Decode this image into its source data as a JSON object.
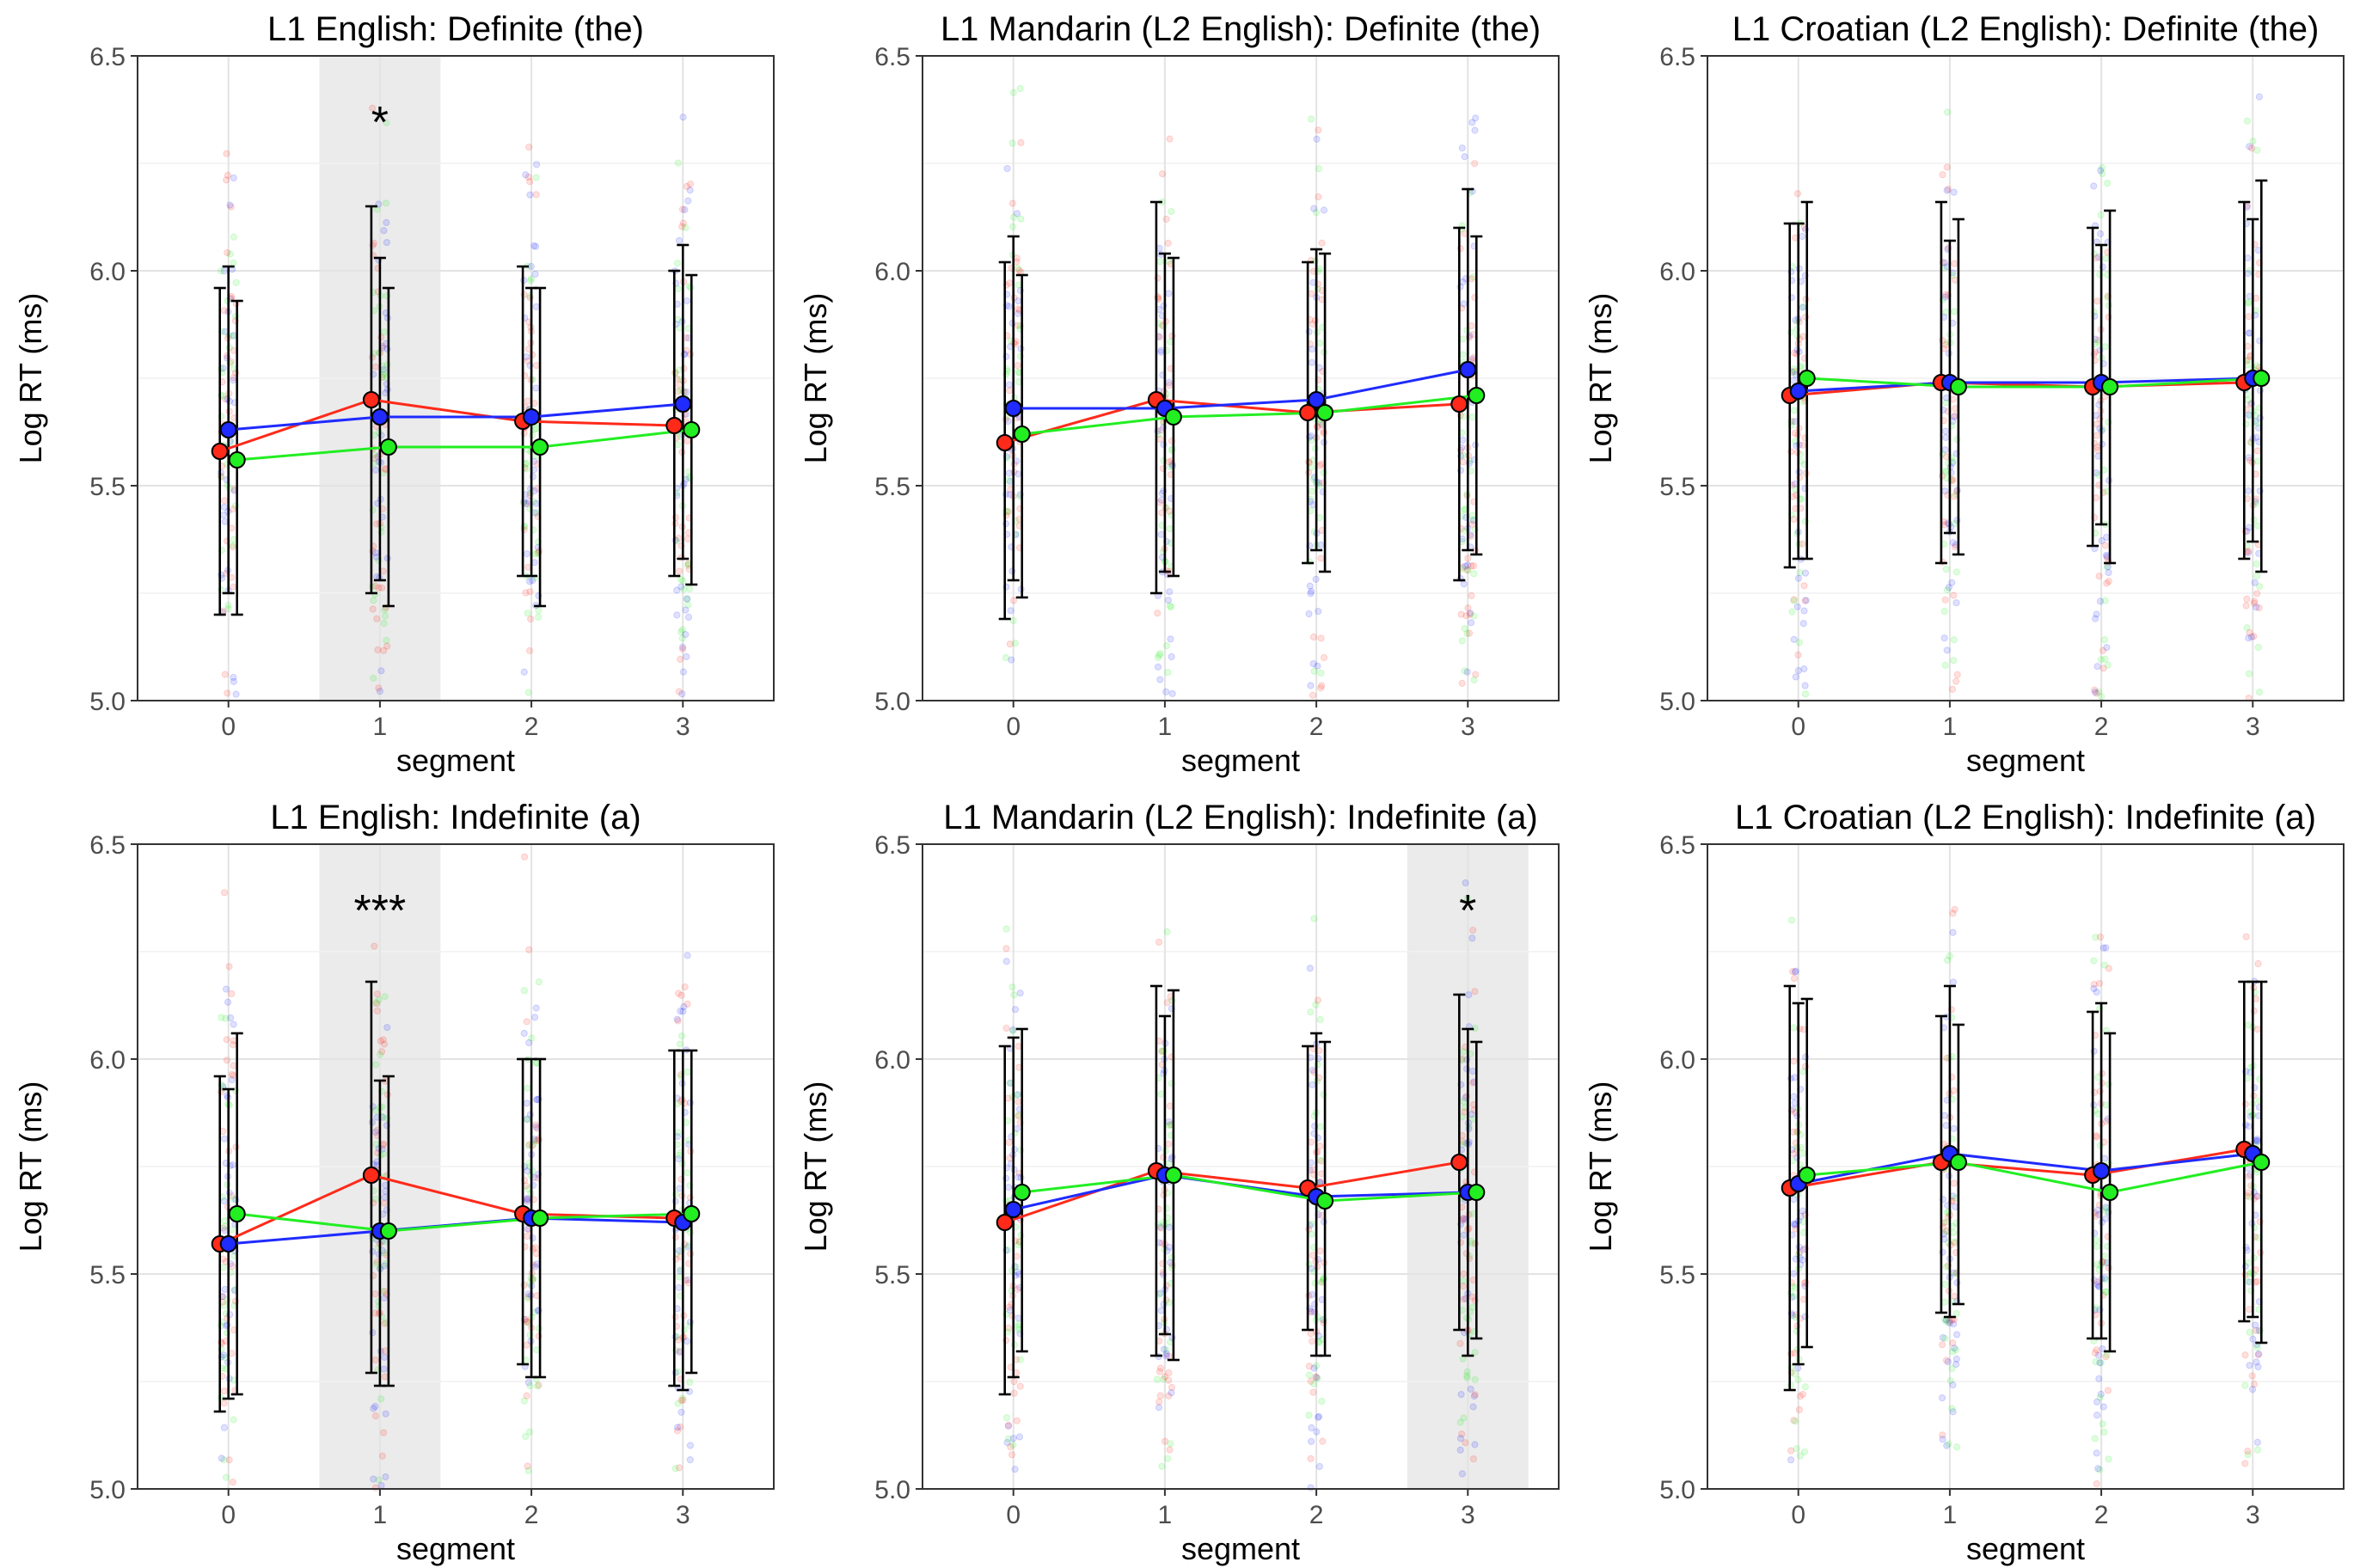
{
  "figure": {
    "series_colors": {
      "red": "#ff2a1a",
      "blue": "#1f2bff",
      "green": "#22ee22"
    },
    "error_bar_color": "#000000",
    "highlight_color": "#ebebeb"
  },
  "chart_data": [
    {
      "type": "line",
      "title": "L1 English: Definite (the)",
      "xlabel": "segment",
      "ylabel": "Log RT (ms)",
      "xticks": [
        "0",
        "1",
        "2",
        "3"
      ],
      "yticks": [
        "5.0",
        "5.5",
        "6.0",
        "6.5"
      ],
      "ylim": [
        5.0,
        6.5
      ],
      "grid": true,
      "highlight_segment": 1,
      "significance": "*",
      "series": [
        {
          "color": "#ff2a1a",
          "x": [
            0,
            1,
            2,
            3
          ],
          "y": [
            5.58,
            5.7,
            5.65,
            5.64
          ],
          "lower": [
            5.2,
            5.25,
            5.29,
            5.29
          ],
          "upper": [
            5.96,
            6.15,
            6.01,
            6.0
          ]
        },
        {
          "color": "#1f2bff",
          "x": [
            0,
            1,
            2,
            3
          ],
          "y": [
            5.63,
            5.66,
            5.66,
            5.69
          ],
          "lower": [
            5.25,
            5.28,
            5.29,
            5.33
          ],
          "upper": [
            6.01,
            6.03,
            5.96,
            6.06
          ]
        },
        {
          "color": "#22ee22",
          "x": [
            0,
            1,
            2,
            3
          ],
          "y": [
            5.56,
            5.59,
            5.59,
            5.63
          ],
          "lower": [
            5.2,
            5.22,
            5.22,
            5.27
          ],
          "upper": [
            5.93,
            5.96,
            5.96,
            5.99
          ]
        }
      ]
    },
    {
      "type": "line",
      "title": "L1 Mandarin (L2 English): Definite (the)",
      "xlabel": "segment",
      "ylabel": "Log RT (ms)",
      "xticks": [
        "0",
        "1",
        "2",
        "3"
      ],
      "yticks": [
        "5.0",
        "5.5",
        "6.0",
        "6.5"
      ],
      "ylim": [
        5.0,
        6.5
      ],
      "grid": true,
      "highlight_segment": null,
      "significance": "",
      "series": [
        {
          "color": "#ff2a1a",
          "x": [
            0,
            1,
            2,
            3
          ],
          "y": [
            5.6,
            5.7,
            5.67,
            5.69
          ],
          "lower": [
            5.19,
            5.25,
            5.32,
            5.28
          ],
          "upper": [
            6.02,
            6.16,
            6.02,
            6.1
          ]
        },
        {
          "color": "#1f2bff",
          "x": [
            0,
            1,
            2,
            3
          ],
          "y": [
            5.68,
            5.68,
            5.7,
            5.77
          ],
          "lower": [
            5.28,
            5.3,
            5.35,
            5.35
          ],
          "upper": [
            6.08,
            6.04,
            6.05,
            6.19
          ]
        },
        {
          "color": "#22ee22",
          "x": [
            0,
            1,
            2,
            3
          ],
          "y": [
            5.62,
            5.66,
            5.67,
            5.71
          ],
          "lower": [
            5.24,
            5.29,
            5.3,
            5.34
          ],
          "upper": [
            5.99,
            6.03,
            6.04,
            6.08
          ]
        }
      ]
    },
    {
      "type": "line",
      "title": "L1 Croatian (L2 English): Definite (the)",
      "xlabel": "segment",
      "ylabel": "Log RT (ms)",
      "xticks": [
        "0",
        "1",
        "2",
        "3"
      ],
      "yticks": [
        "5.0",
        "5.5",
        "6.0",
        "6.5"
      ],
      "ylim": [
        5.0,
        6.5
      ],
      "grid": true,
      "highlight_segment": null,
      "significance": "",
      "series": [
        {
          "color": "#ff2a1a",
          "x": [
            0,
            1,
            2,
            3
          ],
          "y": [
            5.71,
            5.74,
            5.73,
            5.74
          ],
          "lower": [
            5.31,
            5.32,
            5.36,
            5.33
          ],
          "upper": [
            6.11,
            6.16,
            6.1,
            6.16
          ]
        },
        {
          "color": "#1f2bff",
          "x": [
            0,
            1,
            2,
            3
          ],
          "y": [
            5.72,
            5.74,
            5.74,
            5.75
          ],
          "lower": [
            5.33,
            5.39,
            5.41,
            5.37
          ],
          "upper": [
            6.11,
            6.07,
            6.06,
            6.12
          ]
        },
        {
          "color": "#22ee22",
          "x": [
            0,
            1,
            2,
            3
          ],
          "y": [
            5.75,
            5.73,
            5.73,
            5.75
          ],
          "lower": [
            5.33,
            5.34,
            5.32,
            5.3
          ],
          "upper": [
            6.16,
            6.12,
            6.14,
            6.21
          ]
        }
      ]
    },
    {
      "type": "line",
      "title": "L1 English: Indefinite (a)",
      "xlabel": "segment",
      "ylabel": "Log RT (ms)",
      "xticks": [
        "0",
        "1",
        "2",
        "3"
      ],
      "yticks": [
        "5.0",
        "5.5",
        "6.0",
        "6.5"
      ],
      "ylim": [
        5.0,
        6.5
      ],
      "grid": true,
      "highlight_segment": 1,
      "significance": "***",
      "series": [
        {
          "color": "#ff2a1a",
          "x": [
            0,
            1,
            2,
            3
          ],
          "y": [
            5.57,
            5.73,
            5.64,
            5.63
          ],
          "lower": [
            5.18,
            5.27,
            5.29,
            5.24
          ],
          "upper": [
            5.96,
            6.18,
            6.0,
            6.02
          ]
        },
        {
          "color": "#1f2bff",
          "x": [
            0,
            1,
            2,
            3
          ],
          "y": [
            5.57,
            5.6,
            5.63,
            5.62
          ],
          "lower": [
            5.21,
            5.24,
            5.26,
            5.23
          ],
          "upper": [
            5.93,
            5.95,
            6.0,
            6.02
          ]
        },
        {
          "color": "#22ee22",
          "x": [
            0,
            1,
            2,
            3
          ],
          "y": [
            5.64,
            5.6,
            5.63,
            5.64
          ],
          "lower": [
            5.22,
            5.24,
            5.26,
            5.27
          ],
          "upper": [
            6.06,
            5.96,
            6.0,
            6.02
          ]
        }
      ]
    },
    {
      "type": "line",
      "title": "L1 Mandarin (L2 English): Indefinite (a)",
      "xlabel": "segment",
      "ylabel": "Log RT (ms)",
      "xticks": [
        "0",
        "1",
        "2",
        "3"
      ],
      "yticks": [
        "5.0",
        "5.5",
        "6.0",
        "6.5"
      ],
      "ylim": [
        5.0,
        6.5
      ],
      "grid": true,
      "highlight_segment": 3,
      "significance": "*",
      "series": [
        {
          "color": "#ff2a1a",
          "x": [
            0,
            1,
            2,
            3
          ],
          "y": [
            5.62,
            5.74,
            5.7,
            5.76
          ],
          "lower": [
            5.22,
            5.31,
            5.37,
            5.37
          ],
          "upper": [
            6.03,
            6.17,
            6.03,
            6.15
          ]
        },
        {
          "color": "#1f2bff",
          "x": [
            0,
            1,
            2,
            3
          ],
          "y": [
            5.65,
            5.73,
            5.68,
            5.69
          ],
          "lower": [
            5.26,
            5.36,
            5.31,
            5.31
          ],
          "upper": [
            6.05,
            6.1,
            6.06,
            6.07
          ]
        },
        {
          "color": "#22ee22",
          "x": [
            0,
            1,
            2,
            3
          ],
          "y": [
            5.69,
            5.73,
            5.67,
            5.69
          ],
          "lower": [
            5.32,
            5.3,
            5.31,
            5.35
          ],
          "upper": [
            6.07,
            6.16,
            6.04,
            6.04
          ]
        }
      ]
    },
    {
      "type": "line",
      "title": "L1 Croatian (L2 English): Indefinite (a)",
      "xlabel": "segment",
      "ylabel": "Log RT (ms)",
      "xticks": [
        "0",
        "1",
        "2",
        "3"
      ],
      "yticks": [
        "5.0",
        "5.5",
        "6.0",
        "6.5"
      ],
      "ylim": [
        5.0,
        6.5
      ],
      "grid": true,
      "highlight_segment": null,
      "significance": "",
      "series": [
        {
          "color": "#ff2a1a",
          "x": [
            0,
            1,
            2,
            3
          ],
          "y": [
            5.7,
            5.76,
            5.73,
            5.79
          ],
          "lower": [
            5.23,
            5.41,
            5.35,
            5.39
          ],
          "upper": [
            6.17,
            6.1,
            6.11,
            6.18
          ]
        },
        {
          "color": "#1f2bff",
          "x": [
            0,
            1,
            2,
            3
          ],
          "y": [
            5.71,
            5.78,
            5.74,
            5.78
          ],
          "lower": [
            5.29,
            5.4,
            5.35,
            5.4
          ],
          "upper": [
            6.13,
            6.17,
            6.13,
            6.18
          ]
        },
        {
          "color": "#22ee22",
          "x": [
            0,
            1,
            2,
            3
          ],
          "y": [
            5.73,
            5.76,
            5.69,
            5.76
          ],
          "lower": [
            5.33,
            5.43,
            5.32,
            5.34
          ],
          "upper": [
            6.14,
            6.08,
            6.06,
            6.18
          ]
        }
      ]
    }
  ]
}
